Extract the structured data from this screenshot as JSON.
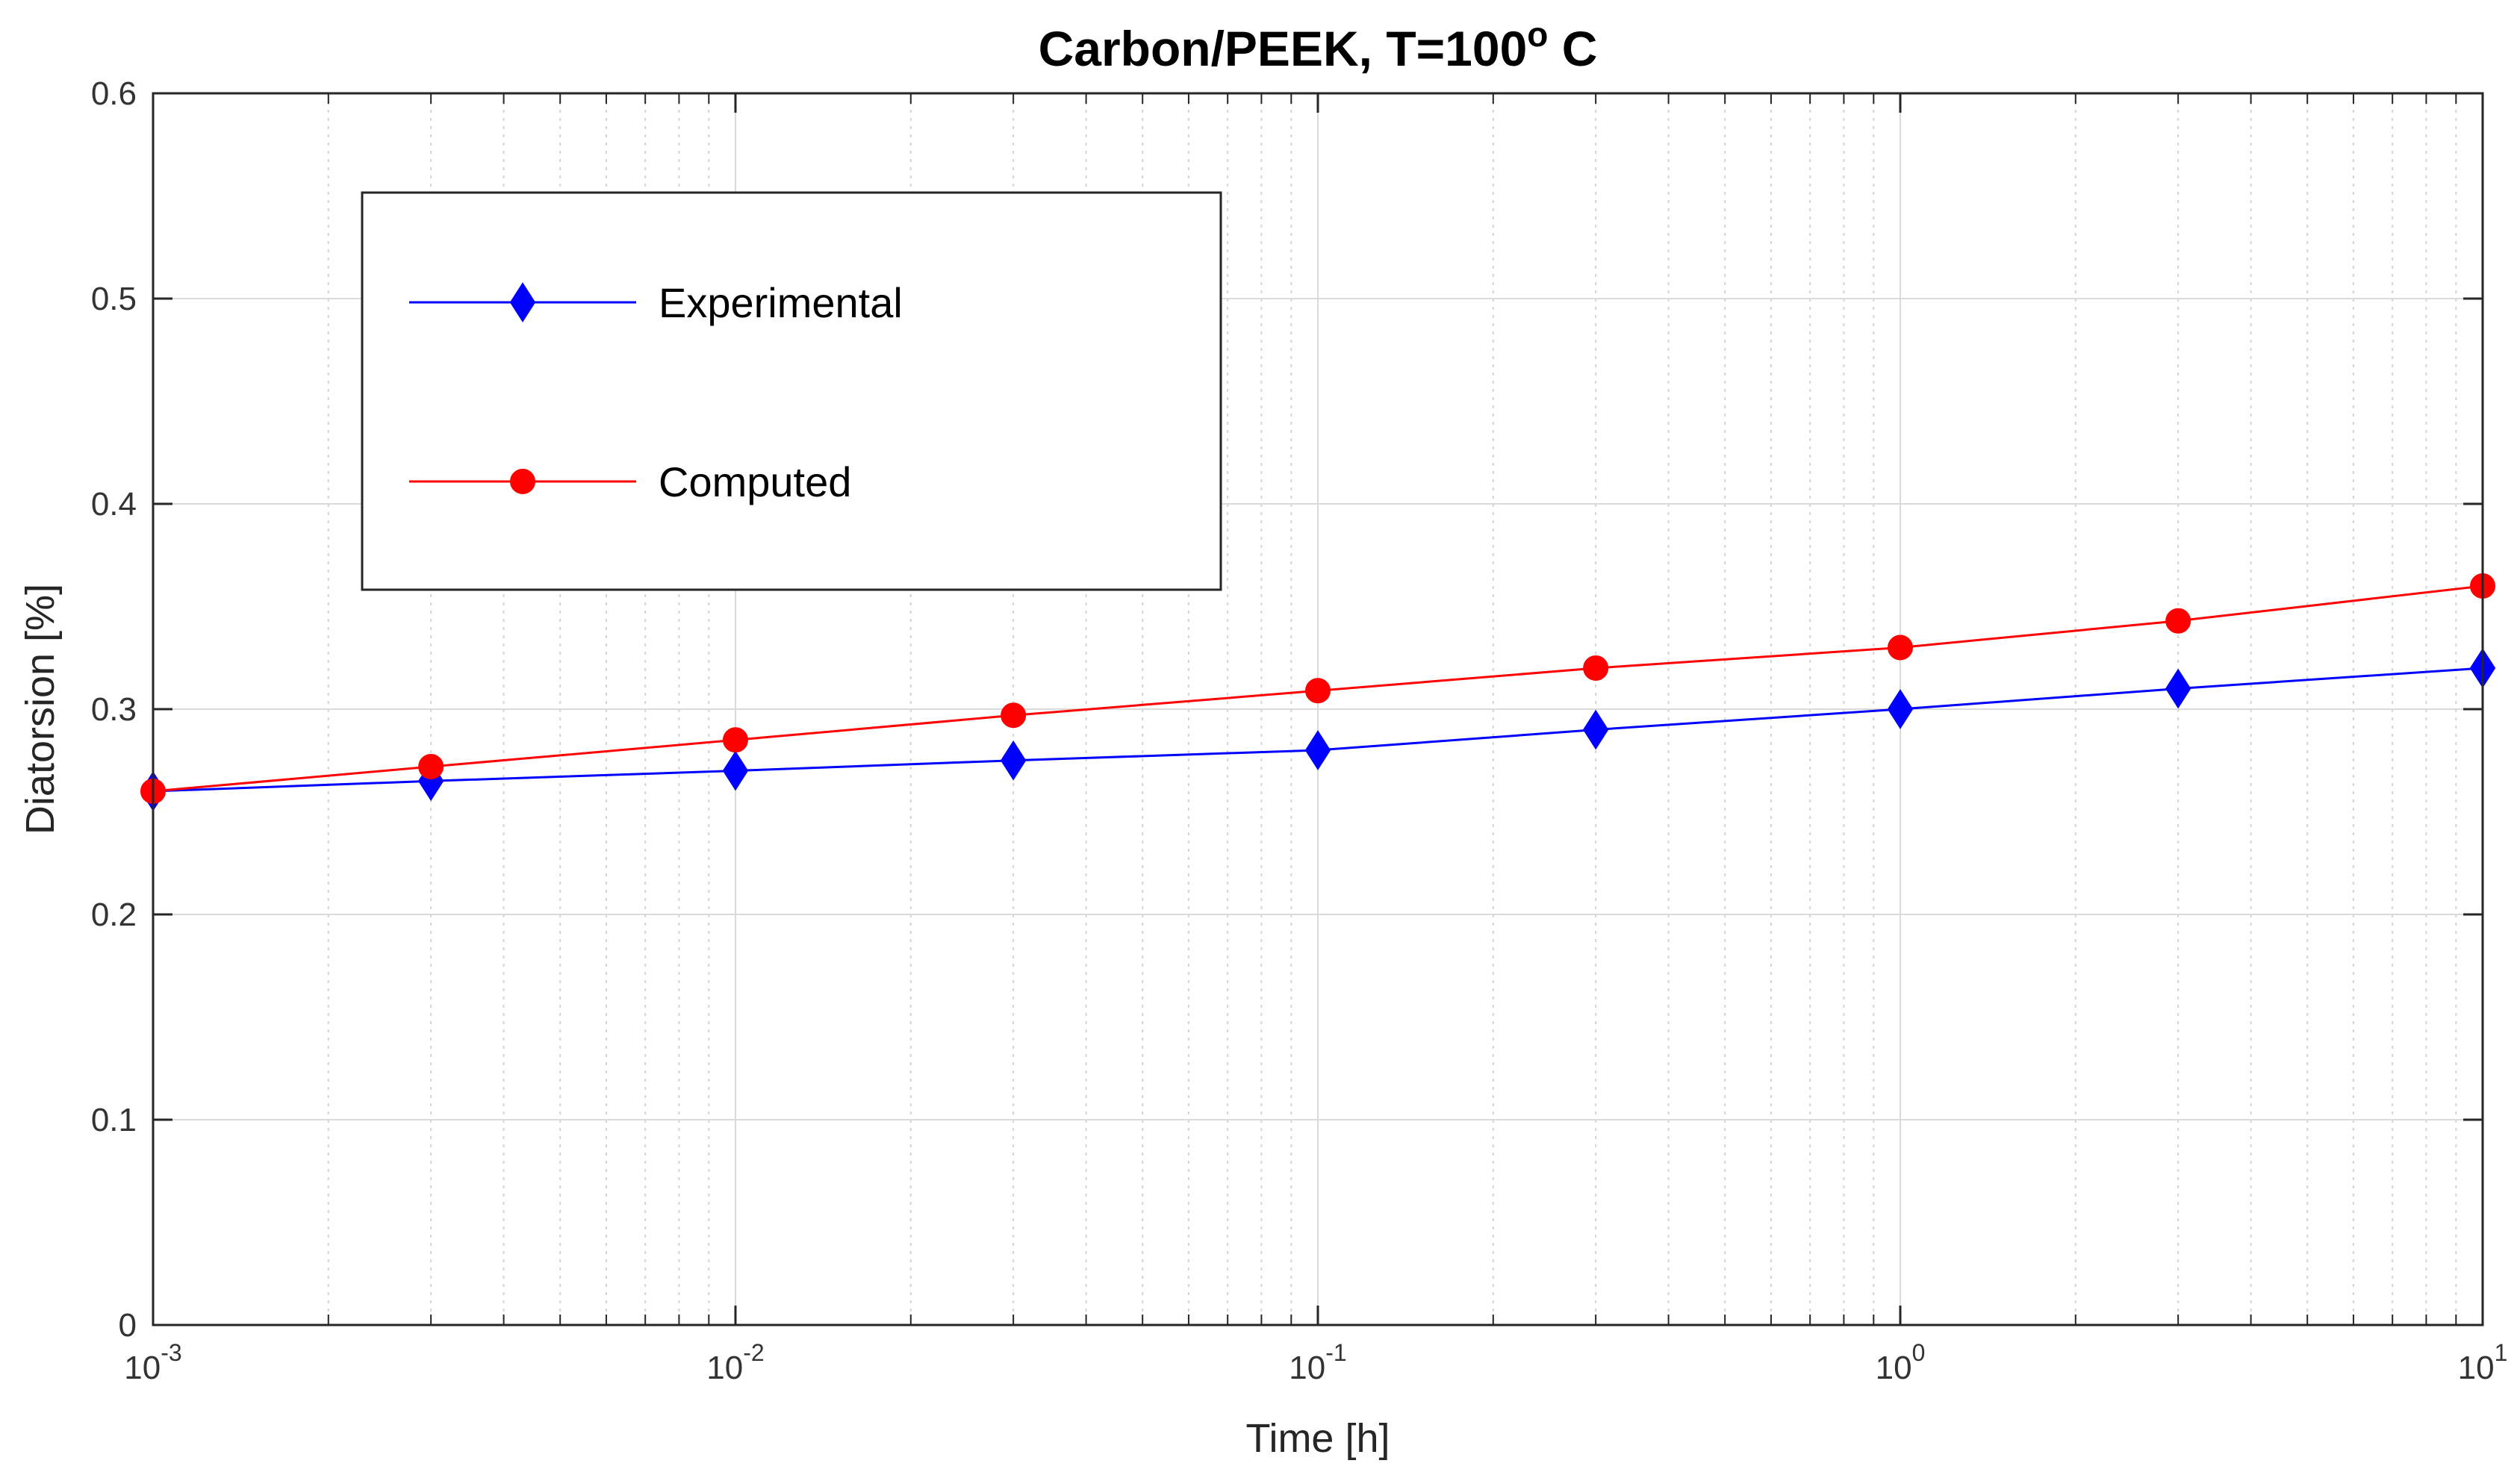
{
  "chart_data": {
    "type": "line",
    "title_main": "Carbon/PEEK, T=100",
    "title_sup": "o",
    "title_suffix": " C",
    "xlabel": "Time [h]",
    "ylabel": "Diatorsion [%]",
    "xscale": "log",
    "xlim": [
      0.001,
      10
    ],
    "ylim": [
      0,
      0.6
    ],
    "grid": true,
    "legend_position": "top-left",
    "x_ticks": [
      {
        "base": "10",
        "exp": "-3"
      },
      {
        "base": "10",
        "exp": "-2"
      },
      {
        "base": "10",
        "exp": "-1"
      },
      {
        "base": "10",
        "exp": "0"
      },
      {
        "base": "10",
        "exp": "1"
      }
    ],
    "y_ticks": [
      "0",
      "0.1",
      "0.2",
      "0.3",
      "0.4",
      "0.5",
      "0.6"
    ],
    "series": [
      {
        "name": "Experimental",
        "color": "#0000ff",
        "marker": "diamond",
        "x": [
          0.001,
          0.003,
          0.01,
          0.03,
          0.1,
          0.3,
          1,
          3,
          10
        ],
        "y": [
          0.26,
          0.265,
          0.27,
          0.275,
          0.28,
          0.29,
          0.3,
          0.31,
          0.32
        ]
      },
      {
        "name": "Computed",
        "color": "#ff0000",
        "marker": "circle",
        "x": [
          0.001,
          0.003,
          0.01,
          0.03,
          0.1,
          0.3,
          1,
          3,
          10
        ],
        "y": [
          0.26,
          0.272,
          0.285,
          0.297,
          0.309,
          0.32,
          0.33,
          0.343,
          0.36
        ]
      }
    ]
  }
}
